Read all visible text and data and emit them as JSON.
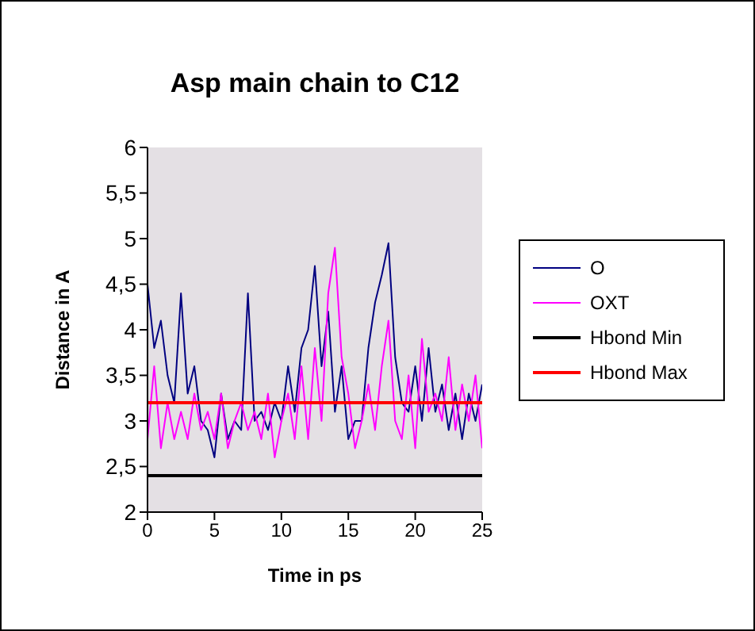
{
  "chart_data": {
    "type": "line",
    "title": "Asp main chain to C12",
    "xlabel": "Time in ps",
    "ylabel": "Distance in A",
    "xlim": [
      0,
      25
    ],
    "xticks": [
      0,
      5,
      10,
      15,
      20,
      25
    ],
    "ylim": [
      2,
      6
    ],
    "yticks": [
      2,
      {
        "value": 2.5,
        "label": "2,5"
      },
      3,
      {
        "value": 3.5,
        "label": "3,5"
      },
      4,
      {
        "value": 4.5,
        "label": "4,5"
      },
      5,
      {
        "value": 5.5,
        "label": "5,5"
      },
      6
    ],
    "legend": "right",
    "grid": false,
    "marker": "none",
    "line_style": "solid",
    "series": [
      {
        "name": "O",
        "color": "#000080",
        "x": [
          0,
          0.5,
          1,
          1.5,
          2,
          2.5,
          3,
          3.5,
          4,
          4.5,
          5,
          5.5,
          6,
          6.5,
          7,
          7.5,
          8,
          8.5,
          9,
          9.5,
          10,
          10.5,
          11,
          11.5,
          12,
          12.5,
          13,
          13.5,
          14,
          14.5,
          15,
          15.5,
          16,
          16.5,
          17,
          17.5,
          18,
          18.5,
          19,
          19.5,
          20,
          20.5,
          21,
          21.5,
          22,
          22.5,
          23,
          23.5,
          24,
          24.5,
          25
        ],
        "values": [
          4.5,
          3.8,
          4.1,
          3.5,
          3.2,
          4.4,
          3.3,
          3.6,
          3.0,
          2.9,
          2.6,
          3.3,
          2.8,
          3.0,
          2.9,
          4.4,
          3.0,
          3.1,
          2.9,
          3.2,
          3.0,
          3.6,
          3.1,
          3.8,
          4.0,
          4.7,
          3.6,
          4.2,
          3.1,
          3.6,
          2.8,
          3.0,
          3.0,
          3.8,
          4.3,
          4.6,
          4.95,
          3.7,
          3.2,
          3.1,
          3.6,
          3.0,
          3.8,
          3.1,
          3.4,
          2.9,
          3.3,
          2.8,
          3.3,
          3.0,
          3.4
        ]
      },
      {
        "name": "OXT",
        "color": "#ff00ff",
        "x": [
          0,
          0.5,
          1,
          1.5,
          2,
          2.5,
          3,
          3.5,
          4,
          4.5,
          5,
          5.5,
          6,
          6.5,
          7,
          7.5,
          8,
          8.5,
          9,
          9.5,
          10,
          10.5,
          11,
          11.5,
          12,
          12.5,
          13,
          13.5,
          14,
          14.5,
          15,
          15.5,
          16,
          16.5,
          17,
          17.5,
          18,
          18.5,
          19,
          19.5,
          20,
          20.5,
          21,
          21.5,
          22,
          22.5,
          23,
          23.5,
          24,
          24.5,
          25
        ],
        "values": [
          2.8,
          3.6,
          2.7,
          3.2,
          2.8,
          3.1,
          2.8,
          3.3,
          2.9,
          3.1,
          2.8,
          3.3,
          2.7,
          3.0,
          3.2,
          2.9,
          3.1,
          2.8,
          3.3,
          2.6,
          3.0,
          3.3,
          2.8,
          3.6,
          2.8,
          3.8,
          3.0,
          4.4,
          4.9,
          3.7,
          3.3,
          2.7,
          3.0,
          3.4,
          2.9,
          3.6,
          4.1,
          3.0,
          2.8,
          3.5,
          2.7,
          3.9,
          3.1,
          3.3,
          3.0,
          3.7,
          2.9,
          3.4,
          3.0,
          3.5,
          2.7
        ]
      },
      {
        "name": "Hbond Min",
        "color": "#000000",
        "x": [
          0,
          25
        ],
        "values": [
          2.4,
          2.4
        ]
      },
      {
        "name": "Hbond Max",
        "color": "#ff0000",
        "x": [
          0,
          25
        ],
        "values": [
          3.2,
          3.2
        ]
      }
    ]
  }
}
